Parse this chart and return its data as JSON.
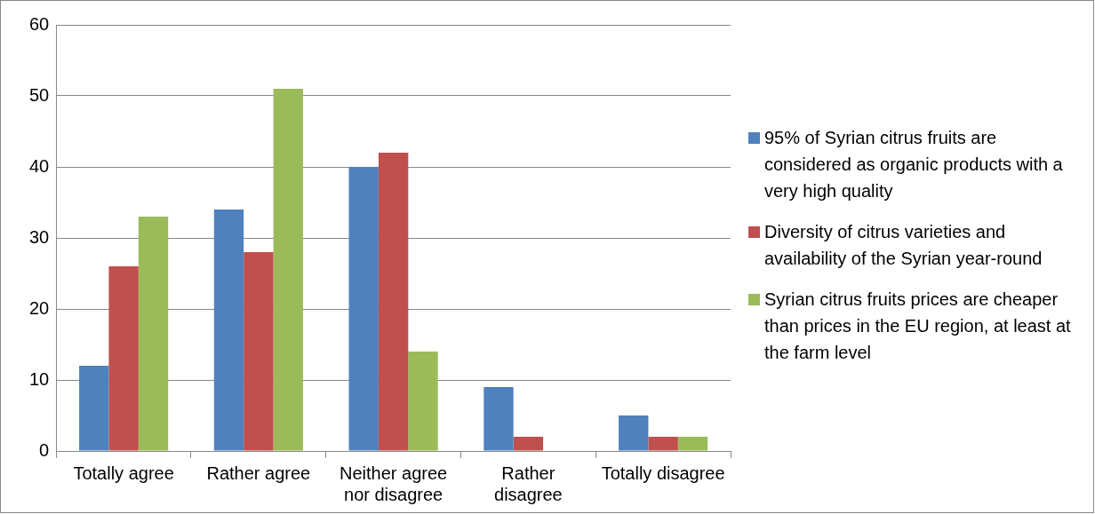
{
  "chart_data": {
    "type": "bar",
    "categories": [
      "Totally agree",
      "Rather agree",
      "Neither agree nor disagree",
      "Rather disagree",
      "Totally disagree"
    ],
    "series": [
      {
        "name": "95% of Syrian citrus fruits are considered as organic products with a very high quality",
        "color": "#4f81bd",
        "values": [
          12,
          34,
          40,
          9,
          5
        ]
      },
      {
        "name": "Diversity of citrus varieties and availability of the Syrian year-round",
        "color": "#c0504d",
        "values": [
          26,
          28,
          42,
          2,
          2
        ]
      },
      {
        "name": "Syrian citrus fruits  prices are cheaper than prices in the EU region, at least at the farm level",
        "color": "#9bbb59",
        "values": [
          33,
          51,
          14,
          0,
          2
        ]
      }
    ],
    "ylim": [
      0,
      60
    ],
    "yticks": [
      0,
      10,
      20,
      30,
      40,
      50,
      60
    ],
    "grid": "y",
    "legend": "right"
  }
}
